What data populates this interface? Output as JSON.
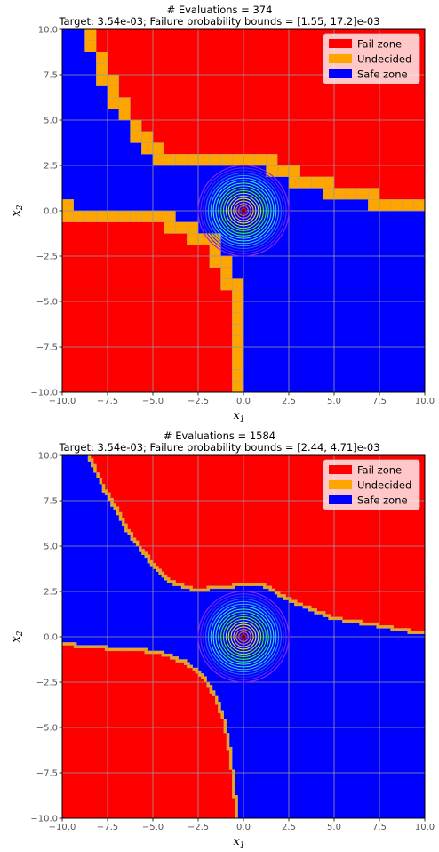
{
  "chart_data": [
    {
      "type": "heatmap",
      "title": "# Evaluations = 374",
      "subtitle": "Target: 3.54e-03; Failure probability bounds = [1.55, 17.2]e-03",
      "xlabel": "x",
      "xlabel_sub": "1",
      "ylabel": "x",
      "ylabel_sub": "2",
      "xlim": [
        -10,
        10
      ],
      "ylim": [
        -10,
        10
      ],
      "xticks": [
        -10.0,
        -7.5,
        -5.0,
        -2.5,
        0.0,
        2.5,
        5.0,
        7.5,
        10.0
      ],
      "yticks": [
        -10.0,
        -7.5,
        -5.0,
        -2.5,
        0.0,
        2.5,
        5.0,
        7.5,
        10.0
      ],
      "xtick_labels": [
        "−10.0",
        "−7.5",
        "−5.0",
        "−2.5",
        "0.0",
        "2.5",
        "5.0",
        "7.5",
        "10.0"
      ],
      "ytick_labels": [
        "−10.0",
        "−7.5",
        "−5.0",
        "−2.5",
        "0.0",
        "2.5",
        "5.0",
        "7.5",
        "10.0"
      ],
      "grid": true,
      "legend_position": "top-right",
      "legend": [
        {
          "label": "Fail zone",
          "color": "#ff0000"
        },
        {
          "label": "Undecided",
          "color": "#ffa500"
        },
        {
          "label": "Safe zone",
          "color": "#0000ff"
        }
      ],
      "density_center": [
        0,
        0
      ],
      "density_extent": 2.5,
      "boundary_cell_size": 0.625,
      "boundary_curves": [
        [
          [
            -8.6,
            10
          ],
          [
            -8.0,
            8.4
          ],
          [
            -7.3,
            7.0
          ],
          [
            -6.8,
            5.8
          ],
          [
            -6.0,
            4.7
          ],
          [
            -5.3,
            3.7
          ],
          [
            -4.5,
            2.8
          ],
          [
            -3.0,
            2.5
          ],
          [
            -1.5,
            2.6
          ],
          [
            0.0,
            2.7
          ],
          [
            1.3,
            2.7
          ],
          [
            2.3,
            2.2
          ],
          [
            3.6,
            1.6
          ],
          [
            5.5,
            1.0
          ],
          [
            7.2,
            0.7
          ],
          [
            8.6,
            0.2
          ],
          [
            10,
            0.1
          ]
        ],
        [
          [
            -10,
            0.0
          ],
          [
            -8.2,
            -0.2
          ],
          [
            -6.5,
            -0.5
          ],
          [
            -4.5,
            -0.6
          ],
          [
            -3.0,
            -0.9
          ],
          [
            -1.8,
            -1.8
          ],
          [
            -1.2,
            -2.8
          ],
          [
            -0.7,
            -3.8
          ],
          [
            -0.5,
            -5.0
          ],
          [
            -0.4,
            -6.5
          ],
          [
            -0.3,
            -8.0
          ],
          [
            -0.25,
            -10
          ]
        ]
      ]
    },
    {
      "type": "heatmap",
      "title": "# Evaluations = 1584",
      "subtitle": "Target: 3.54e-03; Failure probability bounds = [2.44, 4.71]e-03",
      "xlabel": "x",
      "xlabel_sub": "1",
      "ylabel": "x",
      "ylabel_sub": "2",
      "xlim": [
        -10,
        10
      ],
      "ylim": [
        -10,
        10
      ],
      "xticks": [
        -10.0,
        -7.5,
        -5.0,
        -2.5,
        0.0,
        2.5,
        5.0,
        7.5,
        10.0
      ],
      "yticks": [
        -10.0,
        -7.5,
        -5.0,
        -2.5,
        0.0,
        2.5,
        5.0,
        7.5,
        10.0
      ],
      "xtick_labels": [
        "−10.0",
        "−7.5",
        "−5.0",
        "−2.5",
        "0.0",
        "2.5",
        "5.0",
        "7.5",
        "10.0"
      ],
      "ytick_labels": [
        "−10.0",
        "−7.5",
        "−5.0",
        "−2.5",
        "0.0",
        "2.5",
        "5.0",
        "7.5",
        "10.0"
      ],
      "grid": true,
      "legend_position": "top-right",
      "legend": [
        {
          "label": "Fail zone",
          "color": "#ff0000"
        },
        {
          "label": "Undecided",
          "color": "#ffa500"
        },
        {
          "label": "Safe zone",
          "color": "#0000ff"
        }
      ],
      "density_center": [
        0,
        0
      ],
      "density_extent": 2.5,
      "boundary_cell_size": 0.156,
      "boundary_curves": [
        [
          [
            -8.5,
            10
          ],
          [
            -8.2,
            9.2
          ],
          [
            -7.6,
            8.0
          ],
          [
            -7.0,
            7.0
          ],
          [
            -6.5,
            6.0
          ],
          [
            -5.8,
            5.0
          ],
          [
            -5.0,
            4.0
          ],
          [
            -4.0,
            3.0
          ],
          [
            -2.8,
            2.6
          ],
          [
            -1.2,
            2.7
          ],
          [
            0.0,
            2.9
          ],
          [
            1.2,
            2.8
          ],
          [
            2.2,
            2.2
          ],
          [
            3.5,
            1.6
          ],
          [
            5.0,
            1.0
          ],
          [
            7.0,
            0.7
          ],
          [
            8.5,
            0.4
          ],
          [
            10,
            0.2
          ]
        ],
        [
          [
            -10,
            -0.4
          ],
          [
            -8.0,
            -0.6
          ],
          [
            -6.0,
            -0.7
          ],
          [
            -4.5,
            -0.9
          ],
          [
            -3.2,
            -1.4
          ],
          [
            -2.2,
            -2.2
          ],
          [
            -1.6,
            -3.2
          ],
          [
            -1.1,
            -4.5
          ],
          [
            -0.8,
            -6.0
          ],
          [
            -0.6,
            -7.5
          ],
          [
            -0.45,
            -9.0
          ],
          [
            -0.4,
            -10
          ]
        ]
      ]
    }
  ]
}
